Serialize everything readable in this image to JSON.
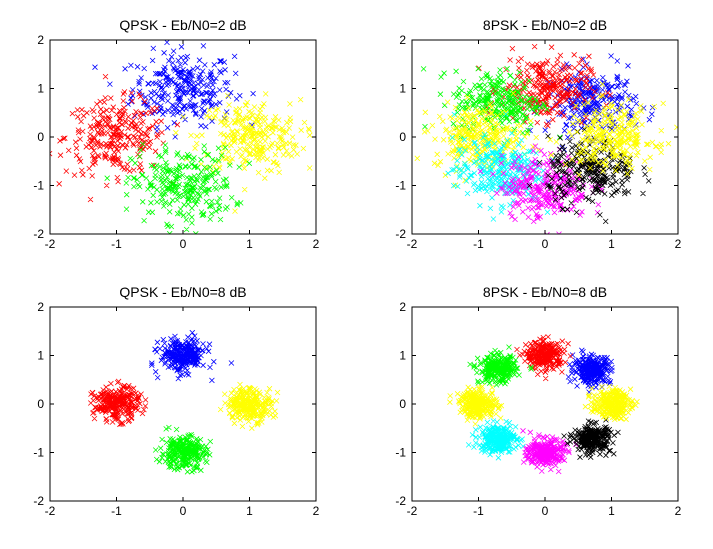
{
  "chart_data": [
    {
      "type": "scatter",
      "title": "QPSK - Eb/N0=2 dB",
      "xlim": [
        -2,
        2
      ],
      "ylim": [
        -2,
        2
      ],
      "xticks": [
        -2,
        -1,
        0,
        1,
        2
      ],
      "yticks": [
        -2,
        -1,
        0,
        1,
        2
      ],
      "xticklabels": [
        "-2",
        "-1",
        "0",
        "1",
        "2"
      ],
      "yticklabels": [
        "-2",
        "-1",
        "0",
        "1",
        "2"
      ],
      "marker": "x",
      "grid": false,
      "clusters": [
        {
          "center": [
            0,
            1
          ],
          "spread": 0.38,
          "color": "#0000ff"
        },
        {
          "center": [
            -1,
            0
          ],
          "spread": 0.38,
          "color": "#ff0000"
        },
        {
          "center": [
            1,
            0
          ],
          "spread": 0.38,
          "color": "#ffff00"
        },
        {
          "center": [
            0,
            -1
          ],
          "spread": 0.38,
          "color": "#00ff00"
        }
      ]
    },
    {
      "type": "scatter",
      "title": "8PSK - Eb/N0=2 dB",
      "xlim": [
        -2,
        2
      ],
      "ylim": [
        -2,
        2
      ],
      "xticks": [
        -2,
        -1,
        0,
        1,
        2
      ],
      "yticks": [
        -2,
        -1,
        0,
        1,
        2
      ],
      "xticklabels": [
        "-2",
        "-1",
        "0",
        "1",
        "2"
      ],
      "yticklabels": [
        "-2",
        "-1",
        "0",
        "1",
        "2"
      ],
      "marker": "x",
      "grid": false,
      "clusters": [
        {
          "center": [
            0.71,
            0.71
          ],
          "spread": 0.33,
          "color": "#0000ff"
        },
        {
          "center": [
            0,
            1
          ],
          "spread": 0.33,
          "color": "#ff0000"
        },
        {
          "center": [
            -0.71,
            0.71
          ],
          "spread": 0.33,
          "color": "#00ff00"
        },
        {
          "center": [
            -1,
            0
          ],
          "spread": 0.33,
          "color": "#ffff00"
        },
        {
          "center": [
            -0.71,
            -0.71
          ],
          "spread": 0.33,
          "color": "#00ffff"
        },
        {
          "center": [
            0,
            -1
          ],
          "spread": 0.33,
          "color": "#ff00ff"
        },
        {
          "center": [
            0.71,
            -0.71
          ],
          "spread": 0.33,
          "color": "#000000"
        },
        {
          "center": [
            1,
            0
          ],
          "spread": 0.33,
          "color": "#ffff00"
        }
      ]
    },
    {
      "type": "scatter",
      "title": "QPSK - Eb/N0=8 dB",
      "xlim": [
        -2,
        2
      ],
      "ylim": [
        -2,
        2
      ],
      "xticks": [
        -2,
        -1,
        0,
        1,
        2
      ],
      "yticks": [
        -2,
        -1,
        0,
        1,
        2
      ],
      "xticklabels": [
        "-2",
        "-1",
        "0",
        "1",
        "2"
      ],
      "yticklabels": [
        "-2",
        "-1",
        "0",
        "1",
        "2"
      ],
      "marker": "x",
      "grid": false,
      "clusters": [
        {
          "center": [
            0,
            1
          ],
          "spread": 0.17,
          "color": "#0000ff"
        },
        {
          "center": [
            -1,
            0
          ],
          "spread": 0.17,
          "color": "#ff0000"
        },
        {
          "center": [
            1,
            0
          ],
          "spread": 0.17,
          "color": "#ffff00"
        },
        {
          "center": [
            0,
            -1
          ],
          "spread": 0.17,
          "color": "#00ff00"
        }
      ]
    },
    {
      "type": "scatter",
      "title": "8PSK - Eb/N0=8 dB",
      "xlim": [
        -2,
        2
      ],
      "ylim": [
        -2,
        2
      ],
      "xticks": [
        -2,
        -1,
        0,
        1,
        2
      ],
      "yticks": [
        -2,
        -1,
        0,
        1,
        2
      ],
      "xticklabels": [
        "-2",
        "-1",
        "0",
        "1",
        "2"
      ],
      "yticklabels": [
        "-2",
        "-1",
        "0",
        "1",
        "2"
      ],
      "marker": "x",
      "grid": false,
      "clusters": [
        {
          "center": [
            0.71,
            0.71
          ],
          "spread": 0.14,
          "color": "#0000ff"
        },
        {
          "center": [
            0,
            1
          ],
          "spread": 0.14,
          "color": "#ff0000"
        },
        {
          "center": [
            -0.71,
            0.71
          ],
          "spread": 0.14,
          "color": "#00ff00"
        },
        {
          "center": [
            -1,
            0
          ],
          "spread": 0.14,
          "color": "#ffff00"
        },
        {
          "center": [
            -0.71,
            -0.71
          ],
          "spread": 0.14,
          "color": "#00ffff"
        },
        {
          "center": [
            0,
            -1
          ],
          "spread": 0.14,
          "color": "#ff00ff"
        },
        {
          "center": [
            0.71,
            -0.71
          ],
          "spread": 0.14,
          "color": "#000000"
        },
        {
          "center": [
            1,
            0
          ],
          "spread": 0.14,
          "color": "#ffff00"
        }
      ]
    }
  ]
}
